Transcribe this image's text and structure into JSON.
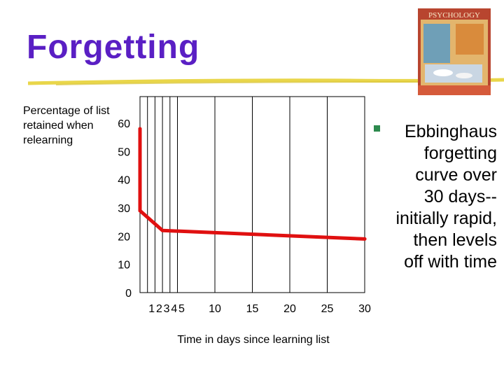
{
  "slide": {
    "title": "Forgetting",
    "book_cover_text": "PSYCHOLOGY",
    "bullet": "Ebbinghaus forgetting curve over 30 days--initially rapid, then levels off with time"
  },
  "chart_data": {
    "type": "line",
    "title": "",
    "ylabel": "Percentage of list retained when relearning",
    "xlabel": "Time in days since learning list",
    "xlim": [
      0,
      30
    ],
    "ylim": [
      0,
      60
    ],
    "x_ticks": [
      1,
      2,
      3,
      4,
      5,
      10,
      15,
      20,
      25,
      30
    ],
    "y_ticks": [
      0,
      10,
      20,
      30,
      40,
      50,
      60
    ],
    "grid_x": [
      1,
      2,
      3,
      4,
      5,
      10,
      15,
      20,
      25
    ],
    "series": [
      {
        "color": "#e01010",
        "x": [
          0,
          0,
          3,
          30
        ],
        "y": [
          58,
          29,
          22,
          19
        ]
      }
    ]
  }
}
